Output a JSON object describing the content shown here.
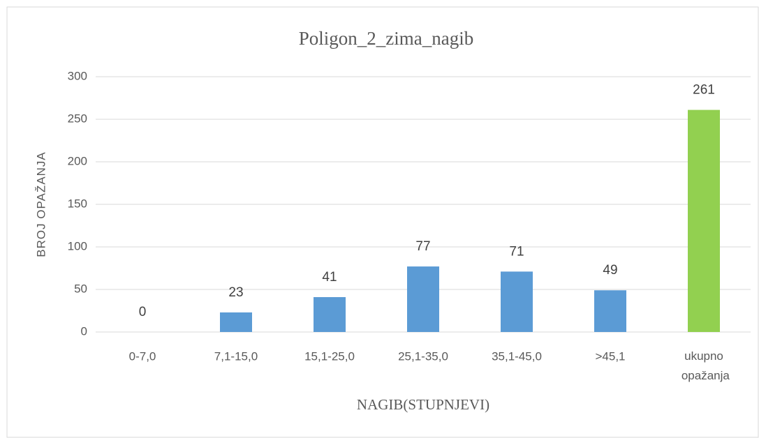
{
  "chart_data": {
    "type": "bar",
    "title": "Poligon_2_zima_nagib",
    "x_label": "NAGIB(STUPNJEVI)",
    "y_label": "BROJ OPAŽANJA",
    "categories": [
      "0-7,0",
      "7,1-15,0",
      "15,1-25,0",
      "25,1-35,0",
      "35,1-45,0",
      ">45,1",
      "ukupno opažanja"
    ],
    "values": [
      0,
      23,
      41,
      77,
      71,
      49,
      261
    ],
    "colors": [
      "#5b9bd5",
      "#5b9bd5",
      "#5b9bd5",
      "#5b9bd5",
      "#5b9bd5",
      "#5b9bd5",
      "#92d050"
    ],
    "ylim": [
      0,
      300
    ],
    "yticks": [
      0,
      50,
      100,
      150,
      200,
      250,
      300
    ],
    "grid": true
  }
}
